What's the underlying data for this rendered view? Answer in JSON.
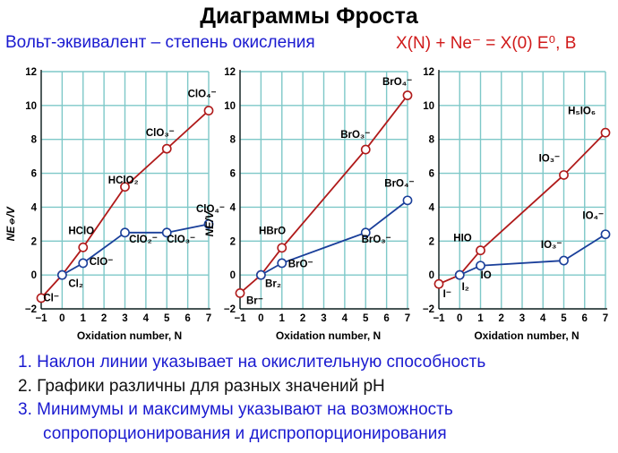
{
  "title": "Диаграммы Фроста",
  "subtitle_left": "Вольт-эквивалент – степень окисления",
  "subtitle_right": "X(N) + Ne⁻ = X(0)   E⁰, В",
  "notes": [
    "1. Наклон линии указывает на окислительную способность",
    "2. Графики различны для разных значений pH",
    "3. Минимумы и максимумы указывают на возможность",
    "сопропорционирования и диспропорционирования"
  ],
  "colors": {
    "acid": "#b01a1a",
    "base": "#1a3f9a",
    "grid": "#7ec8c8"
  },
  "chart_data": [
    {
      "type": "line",
      "xlabel": "Oxidation number,  N",
      "ylabel": "NE⦵/V",
      "xlim": [
        -1,
        7
      ],
      "ylim": [
        -2,
        12
      ],
      "xticks": [
        "−1",
        "0",
        "1",
        "2",
        "3",
        "4",
        "5",
        "6",
        "7"
      ],
      "yticks": [
        "−2",
        "0",
        "2",
        "4",
        "6",
        "8",
        "10",
        "12"
      ],
      "series": [
        {
          "points": [
            [
              -1,
              -1.36
            ],
            [
              0,
              0
            ],
            [
              1,
              1.63
            ],
            [
              3,
              5.2
            ],
            [
              5,
              7.45
            ],
            [
              7,
              9.7
            ]
          ]
        },
        {
          "points": [
            [
              0,
              0
            ],
            [
              1,
              0.7
            ],
            [
              3,
              2.5
            ],
            [
              5,
              2.5
            ],
            [
              7,
              3.0
            ]
          ]
        }
      ],
      "annotations": [
        {
          "text": "Cl⁻",
          "x": -0.9,
          "y": -1.55
        },
        {
          "text": "Cl₂",
          "x": 0.3,
          "y": -0.7
        },
        {
          "text": "HClO",
          "x": 0.3,
          "y": 2.4
        },
        {
          "text": "ClO⁻",
          "x": 1.3,
          "y": 0.6
        },
        {
          "text": "HClO₂",
          "x": 2.2,
          "y": 5.4
        },
        {
          "text": "ClO₂⁻",
          "x": 3.2,
          "y": 1.9
        },
        {
          "text": "ClO₃⁻",
          "x": 4.0,
          "y": 8.2
        },
        {
          "text": "ClO₃⁻",
          "x": 5.0,
          "y": 1.9
        },
        {
          "text": "ClO₄⁻",
          "x": 6.0,
          "y": 10.5
        },
        {
          "text": "ClO₄⁻",
          "x": 6.4,
          "y": 3.7
        }
      ]
    },
    {
      "type": "line",
      "xlabel": "Oxidation number,  N",
      "ylabel": "NE/V",
      "xlim": [
        -1,
        7
      ],
      "ylim": [
        -2,
        12
      ],
      "xticks": [
        "−1",
        "0",
        "1",
        "2",
        "3",
        "4",
        "5",
        "6",
        "7"
      ],
      "yticks": [
        "−2",
        "0",
        "2",
        "4",
        "6",
        "8",
        "10",
        "12"
      ],
      "series": [
        {
          "points": [
            [
              -1,
              -1.07
            ],
            [
              0,
              0
            ],
            [
              1,
              1.6
            ],
            [
              5,
              7.4
            ],
            [
              7,
              10.6
            ]
          ]
        },
        {
          "points": [
            [
              0,
              0
            ],
            [
              1,
              0.7
            ],
            [
              5,
              2.5
            ],
            [
              7,
              4.4
            ]
          ]
        }
      ],
      "annotations": [
        {
          "text": "Br⁻",
          "x": -0.7,
          "y": -1.7
        },
        {
          "text": "Br₂",
          "x": 0.2,
          "y": -0.7
        },
        {
          "text": "HBrO",
          "x": -0.1,
          "y": 2.4
        },
        {
          "text": "BrO⁻",
          "x": 1.3,
          "y": 0.45
        },
        {
          "text": "BrO₃⁻",
          "x": 3.8,
          "y": 8.1
        },
        {
          "text": "BrO₃⁻",
          "x": 4.8,
          "y": 1.9
        },
        {
          "text": "BrO₄⁻",
          "x": 5.8,
          "y": 11.2
        },
        {
          "text": "BrO₄⁻",
          "x": 5.9,
          "y": 5.2
        }
      ]
    },
    {
      "type": "line",
      "xlabel": "Oxidation number,  N",
      "ylabel": "",
      "xlim": [
        -1,
        7
      ],
      "ylim": [
        -2,
        12
      ],
      "xticks": [
        "−1",
        "0",
        "1",
        "2",
        "3",
        "4",
        "5",
        "6",
        "7"
      ],
      "yticks": [
        "−2",
        "0",
        "2",
        "4",
        "6",
        "8",
        "10",
        "12"
      ],
      "series": [
        {
          "points": [
            [
              -1,
              -0.53
            ],
            [
              0,
              0
            ],
            [
              1,
              1.45
            ],
            [
              5,
              5.9
            ],
            [
              7,
              8.4
            ]
          ]
        },
        {
          "points": [
            [
              0,
              0
            ],
            [
              1,
              0.55
            ],
            [
              5,
              0.85
            ],
            [
              7,
              2.4
            ]
          ]
        }
      ],
      "annotations": [
        {
          "text": "I⁻",
          "x": -0.8,
          "y": -1.3
        },
        {
          "text": "I₂",
          "x": 0.1,
          "y": -0.9
        },
        {
          "text": "HIO",
          "x": -0.3,
          "y": 2.0
        },
        {
          "text": "IO",
          "x": 1.0,
          "y": -0.2
        },
        {
          "text": "IO₃⁻",
          "x": 3.8,
          "y": 6.7
        },
        {
          "text": "IO₃⁻",
          "x": 3.9,
          "y": 1.6
        },
        {
          "text": "H₅IO₆",
          "x": 5.2,
          "y": 9.5
        },
        {
          "text": "IO₄⁻",
          "x": 5.9,
          "y": 3.3
        }
      ]
    }
  ]
}
